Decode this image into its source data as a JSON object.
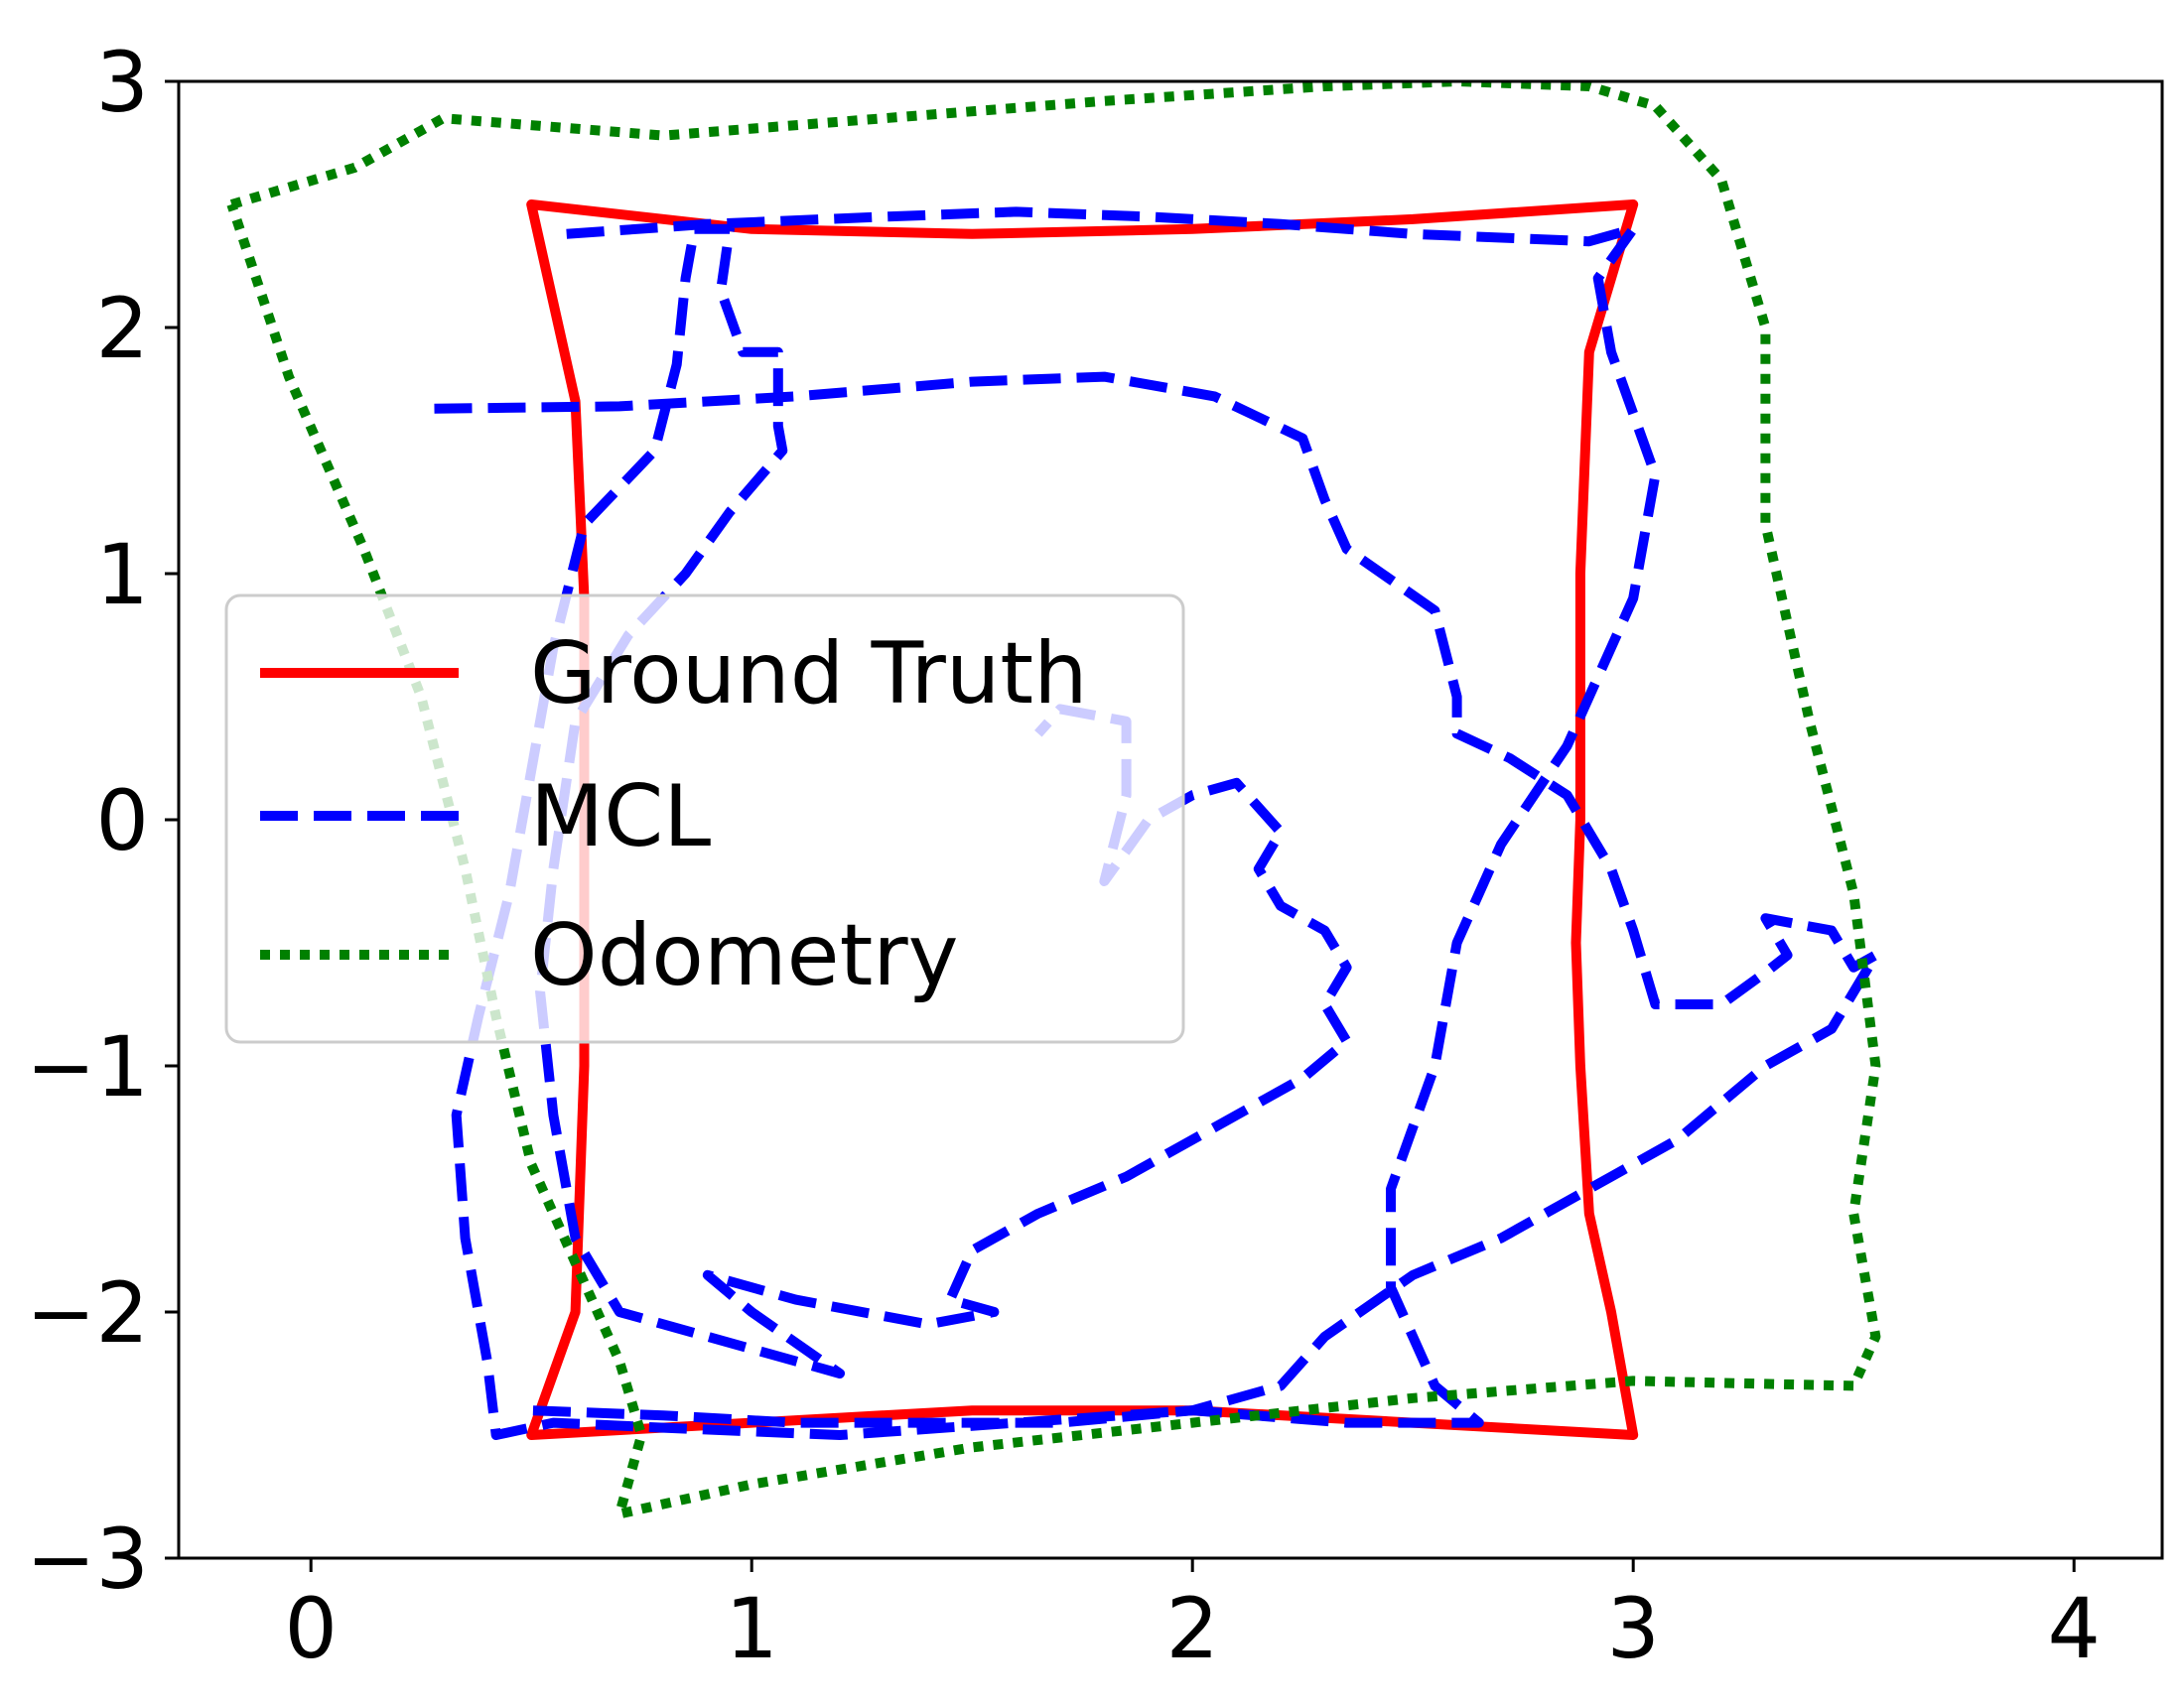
{
  "chart_data": {
    "type": "line",
    "title": "",
    "xlabel": "",
    "ylabel": "",
    "xlim": [
      -0.3,
      4.2
    ],
    "ylim": [
      -3,
      3
    ],
    "x_ticks": [
      0,
      1,
      2,
      3,
      4
    ],
    "y_ticks": [
      -3,
      -2,
      -1,
      0,
      1,
      2,
      3
    ],
    "x_tick_labels": [
      "0",
      "1",
      "2",
      "3",
      "4"
    ],
    "y_tick_labels": [
      "−3",
      "−2",
      "−1",
      "0",
      "1",
      "2",
      "3"
    ],
    "grid": false,
    "legend": {
      "placement": "center-left",
      "entries": [
        "Ground Truth",
        "MCL",
        "Odometry"
      ]
    },
    "series": [
      {
        "name": "Ground Truth",
        "color": "#ff0000",
        "style": "solid",
        "points": [
          [
            0.5,
            2.5
          ],
          [
            1.0,
            2.4
          ],
          [
            1.5,
            2.38
          ],
          [
            2.0,
            2.4
          ],
          [
            2.5,
            2.44
          ],
          [
            3.0,
            2.5
          ],
          [
            2.95,
            2.2
          ],
          [
            2.9,
            1.9
          ],
          [
            2.88,
            1.0
          ],
          [
            2.88,
            0.0
          ],
          [
            2.87,
            -0.5
          ],
          [
            2.88,
            -1.0
          ],
          [
            2.9,
            -1.6
          ],
          [
            2.95,
            -2.0
          ],
          [
            3.0,
            -2.5
          ],
          [
            2.5,
            -2.45
          ],
          [
            2.0,
            -2.4
          ],
          [
            1.5,
            -2.4
          ],
          [
            1.0,
            -2.45
          ],
          [
            0.5,
            -2.5
          ],
          [
            0.6,
            -2.0
          ],
          [
            0.62,
            -1.0
          ],
          [
            0.62,
            0.0
          ],
          [
            0.62,
            0.9
          ],
          [
            0.6,
            1.7
          ],
          [
            0.55,
            2.1
          ],
          [
            0.5,
            2.5
          ]
        ]
      },
      {
        "name": "MCL",
        "color": "#0000ff",
        "style": "dashed",
        "points": [
          [
            0.58,
            2.38
          ],
          [
            0.9,
            2.42
          ],
          [
            1.3,
            2.45
          ],
          [
            1.6,
            2.47
          ],
          [
            1.9,
            2.45
          ],
          [
            2.2,
            2.42
          ],
          [
            2.5,
            2.38
          ],
          [
            2.9,
            2.35
          ],
          [
            3.0,
            2.4
          ],
          [
            2.92,
            2.2
          ],
          [
            2.95,
            1.9
          ],
          [
            3.05,
            1.4
          ],
          [
            3.0,
            0.9
          ],
          [
            2.85,
            0.3
          ],
          [
            2.7,
            -0.1
          ],
          [
            2.6,
            -0.5
          ],
          [
            2.55,
            -1.0
          ],
          [
            2.45,
            -1.5
          ],
          [
            2.45,
            -1.9
          ],
          [
            2.55,
            -2.3
          ],
          [
            2.65,
            -2.45
          ],
          [
            2.35,
            -2.45
          ],
          [
            2.0,
            -2.4
          ],
          [
            1.6,
            -2.45
          ],
          [
            1.2,
            -2.5
          ],
          [
            0.8,
            -2.47
          ],
          [
            0.55,
            -2.45
          ],
          [
            0.42,
            -2.5
          ],
          [
            0.4,
            -2.2
          ],
          [
            0.35,
            -1.7
          ],
          [
            0.33,
            -1.2
          ],
          [
            0.38,
            -0.8
          ],
          [
            0.45,
            -0.3
          ],
          [
            0.5,
            0.2
          ],
          [
            0.55,
            0.7
          ],
          [
            0.62,
            1.2
          ],
          [
            0.78,
            1.5
          ],
          [
            0.83,
            1.85
          ],
          [
            0.85,
            2.2
          ],
          [
            0.87,
            2.4
          ],
          [
            0.95,
            2.4
          ],
          [
            0.93,
            2.15
          ],
          [
            0.98,
            1.9
          ],
          [
            1.06,
            1.9
          ],
          [
            1.06,
            1.6
          ],
          [
            1.07,
            1.5
          ],
          [
            0.95,
            1.25
          ],
          [
            0.85,
            1.0
          ],
          [
            0.72,
            0.75
          ],
          [
            0.6,
            0.4
          ],
          [
            0.55,
            -0.2
          ],
          [
            0.52,
            -0.7
          ],
          [
            0.55,
            -1.2
          ],
          [
            0.6,
            -1.7
          ],
          [
            0.7,
            -2.0
          ],
          [
            0.9,
            -2.1
          ],
          [
            1.1,
            -2.2
          ],
          [
            1.2,
            -2.25
          ],
          [
            1.0,
            -2.0
          ],
          [
            0.9,
            -1.85
          ],
          [
            1.1,
            -1.95
          ],
          [
            1.4,
            -2.05
          ],
          [
            1.55,
            -2.0
          ],
          [
            1.45,
            -1.95
          ],
          [
            1.5,
            -1.75
          ],
          [
            1.65,
            -1.6
          ],
          [
            1.85,
            -1.45
          ],
          [
            2.05,
            -1.25
          ],
          [
            2.25,
            -1.05
          ],
          [
            2.35,
            -0.9
          ],
          [
            2.3,
            -0.75
          ],
          [
            2.35,
            -0.6
          ],
          [
            2.3,
            -0.45
          ],
          [
            2.2,
            -0.35
          ],
          [
            2.15,
            -0.2
          ],
          [
            2.2,
            -0.05
          ],
          [
            2.1,
            0.15
          ],
          [
            2.0,
            0.1
          ],
          [
            1.9,
            0.0
          ],
          [
            1.8,
            -0.25
          ],
          [
            1.85,
            0.1
          ],
          [
            1.85,
            0.4
          ],
          [
            1.7,
            0.45
          ],
          [
            1.65,
            0.35
          ]
        ]
      },
      {
        "name": "MCL",
        "color": "#0000ff",
        "style": "dashed",
        "points": [
          [
            0.28,
            1.67
          ],
          [
            0.7,
            1.68
          ],
          [
            1.1,
            1.72
          ],
          [
            1.5,
            1.78
          ],
          [
            1.8,
            1.8
          ],
          [
            2.05,
            1.72
          ],
          [
            2.25,
            1.55
          ],
          [
            2.3,
            1.3
          ],
          [
            2.35,
            1.1
          ],
          [
            2.55,
            0.85
          ],
          [
            2.6,
            0.5
          ],
          [
            2.6,
            0.35
          ],
          [
            2.72,
            0.25
          ],
          [
            2.85,
            0.1
          ],
          [
            2.95,
            -0.2
          ],
          [
            3.0,
            -0.45
          ],
          [
            3.05,
            -0.75
          ],
          [
            3.2,
            -0.75
          ],
          [
            3.3,
            -0.62
          ],
          [
            3.35,
            -0.55
          ],
          [
            3.3,
            -0.4
          ],
          [
            3.45,
            -0.45
          ],
          [
            3.5,
            -0.6
          ],
          [
            3.55,
            -0.55
          ],
          [
            3.45,
            -0.85
          ],
          [
            3.3,
            -1.0
          ],
          [
            3.1,
            -1.3
          ],
          [
            2.95,
            -1.45
          ],
          [
            2.7,
            -1.7
          ],
          [
            2.5,
            -1.85
          ],
          [
            2.3,
            -2.1
          ],
          [
            2.2,
            -2.3
          ],
          [
            2.0,
            -2.4
          ],
          [
            1.7,
            -2.45
          ],
          [
            1.4,
            -2.45
          ],
          [
            1.1,
            -2.45
          ],
          [
            0.8,
            -2.42
          ],
          [
            0.5,
            -2.4
          ]
        ]
      },
      {
        "name": "Odometry",
        "color": "#008000",
        "style": "dotted",
        "points": [
          [
            -0.18,
            2.5
          ],
          [
            0.1,
            2.65
          ],
          [
            0.3,
            2.85
          ],
          [
            0.8,
            2.78
          ],
          [
            1.3,
            2.85
          ],
          [
            1.8,
            2.92
          ],
          [
            2.3,
            2.98
          ],
          [
            2.6,
            3.0
          ],
          [
            2.9,
            2.98
          ],
          [
            3.05,
            2.9
          ],
          [
            3.2,
            2.6
          ],
          [
            3.3,
            2.0
          ],
          [
            3.3,
            1.2
          ],
          [
            3.4,
            0.4
          ],
          [
            3.5,
            -0.3
          ],
          [
            3.55,
            -1.0
          ],
          [
            3.5,
            -1.6
          ],
          [
            3.55,
            -2.1
          ],
          [
            3.5,
            -2.3
          ],
          [
            3.0,
            -2.28
          ],
          [
            2.5,
            -2.35
          ],
          [
            2.0,
            -2.45
          ],
          [
            1.5,
            -2.55
          ],
          [
            1.0,
            -2.7
          ],
          [
            0.7,
            -2.82
          ],
          [
            0.75,
            -2.5
          ],
          [
            0.7,
            -2.2
          ],
          [
            0.6,
            -1.8
          ],
          [
            0.5,
            -1.4
          ],
          [
            0.42,
            -0.8
          ],
          [
            0.35,
            -0.2
          ],
          [
            0.25,
            0.5
          ],
          [
            0.12,
            1.1
          ],
          [
            -0.05,
            1.8
          ],
          [
            -0.18,
            2.5
          ]
        ]
      }
    ]
  }
}
